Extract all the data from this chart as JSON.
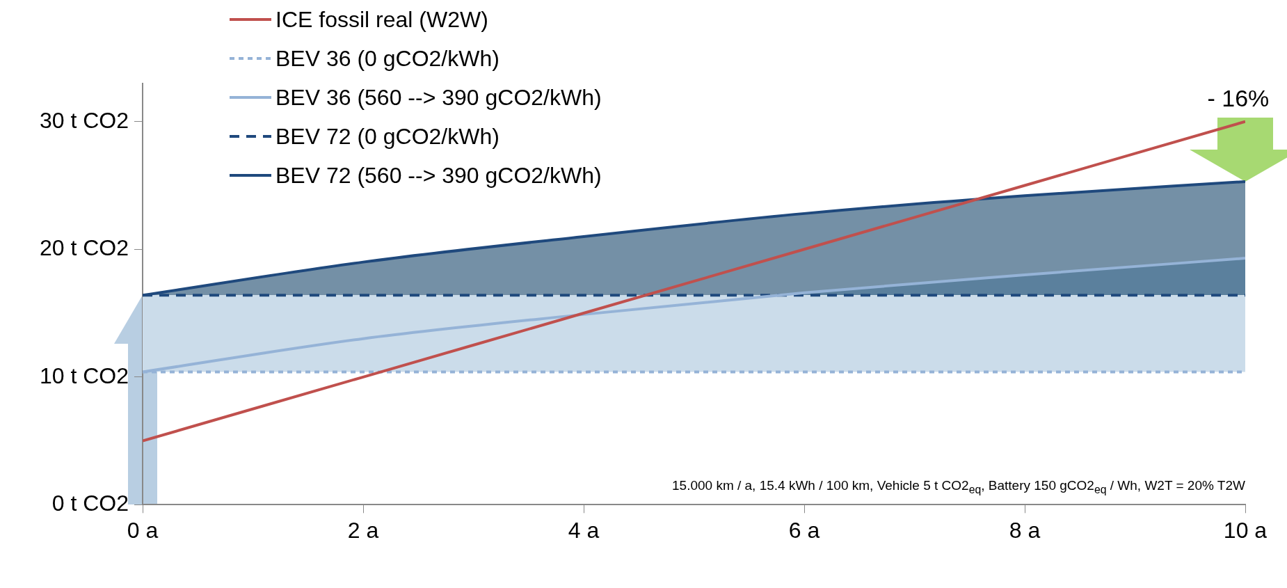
{
  "chart_data": {
    "type": "line",
    "x": [
      0,
      2,
      4,
      6,
      8,
      10
    ],
    "series": [
      {
        "name": "ICE fossil real (W2W)",
        "color": "#c0504d",
        "values": [
          5,
          10,
          15,
          20,
          25,
          30
        ],
        "line_style": "solid"
      },
      {
        "name": "BEV 36 (0 gCO2/kWh)",
        "color": "#95b3d7",
        "values": [
          10.4,
          10.4,
          10.4,
          10.4,
          10.4,
          10.4
        ],
        "line_style": "dotted"
      },
      {
        "name": "BEV 36 (560 --> 390 gCO2/kWh)",
        "color": "#95b3d7",
        "values": [
          10.4,
          13.0,
          14.9,
          16.6,
          18.0,
          19.3
        ],
        "line_style": "solid"
      },
      {
        "name": "BEV 72 (0 gCO2/kWh)",
        "color": "#1f497d",
        "values": [
          16.4,
          16.4,
          16.4,
          16.4,
          16.4,
          16.4
        ],
        "line_style": "dashed"
      },
      {
        "name": "BEV 72 (560 --> 390 gCO2/kWh)",
        "color": "#1f497d",
        "values": [
          16.4,
          19.0,
          21.0,
          22.8,
          24.2,
          25.3
        ],
        "line_style": "solid"
      }
    ],
    "xlim": [
      0,
      10
    ],
    "xticks": [
      {
        "value": 0,
        "label": "0 a"
      },
      {
        "value": 2,
        "label": "2 a"
      },
      {
        "value": 4,
        "label": "4 a"
      },
      {
        "value": 6,
        "label": "6 a"
      },
      {
        "value": 8,
        "label": "8 a"
      },
      {
        "value": 10,
        "label": "10 a"
      }
    ],
    "ylim": [
      0,
      33
    ],
    "yticks": [
      0,
      10,
      20,
      30
    ],
    "ylabel": "t CO2",
    "bands": [
      {
        "axis": "y",
        "from": 10.4,
        "to": 16.4,
        "color": "#cbdcea"
      }
    ],
    "grid": false,
    "legend": "top left",
    "marker": "none",
    "annotations": [
      {
        "text": "- 16%",
        "x": 10,
        "y": 30
      },
      "15.000 km / a, 15.4 kWh / 100 km, Vehicle 5 t CO2$_{eq}$, Battery 150 gCO2$_{eq}$ / Wh, W2T = 20%  T2W"
    ]
  }
}
